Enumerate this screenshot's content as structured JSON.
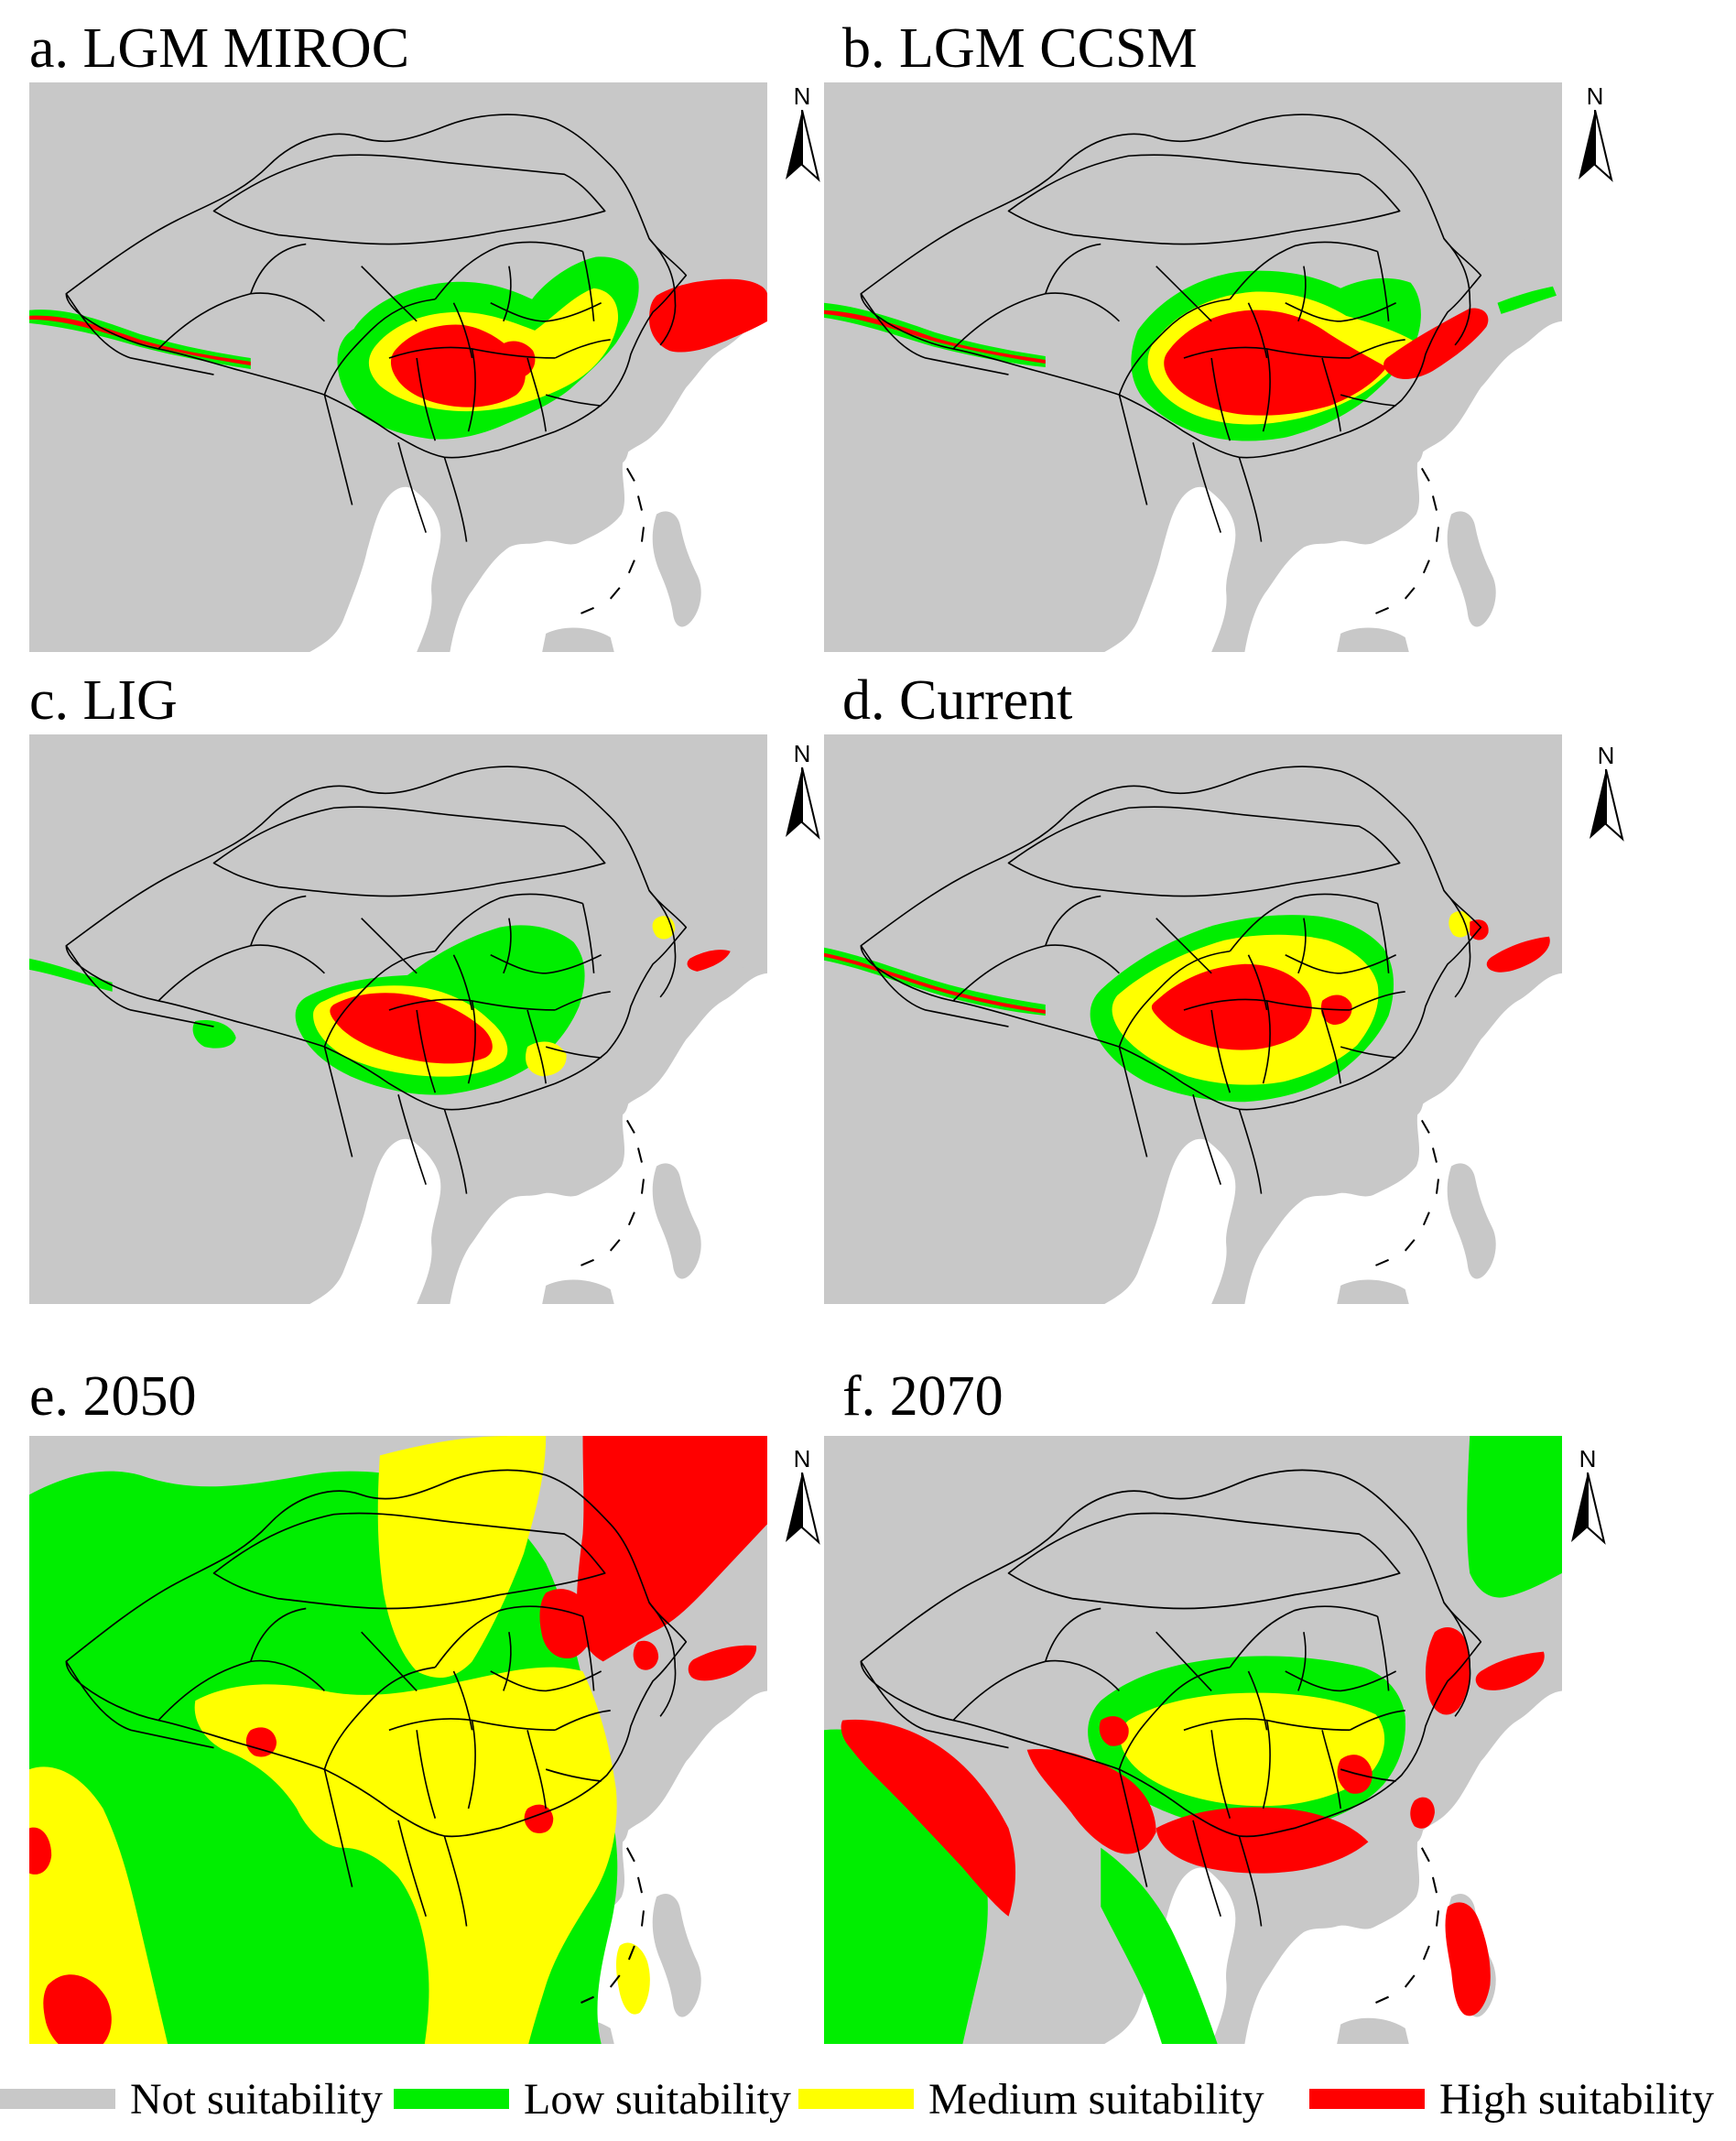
{
  "colors": {
    "not": "#c8c8c8",
    "low": "#00ee00",
    "medium": "#ffff00",
    "high": "#ff0000",
    "border": "#000000"
  },
  "north_label": "N",
  "panels": [
    {
      "id": "a",
      "title": "a. LGM MIROC"
    },
    {
      "id": "b",
      "title": "b. LGM CCSM"
    },
    {
      "id": "c",
      "title": "c. LIG"
    },
    {
      "id": "d",
      "title": "d. Current"
    },
    {
      "id": "e",
      "title": "e. 2050"
    },
    {
      "id": "f",
      "title": "f. 2070"
    }
  ],
  "legend": [
    {
      "label": "Not suitability",
      "color": "#c8c8c8"
    },
    {
      "label": "Low suitability",
      "color": "#00ee00"
    },
    {
      "label": "Medium suitability",
      "color": "#ffff00"
    },
    {
      "label": "High suitability",
      "color": "#ff0000"
    }
  ]
}
